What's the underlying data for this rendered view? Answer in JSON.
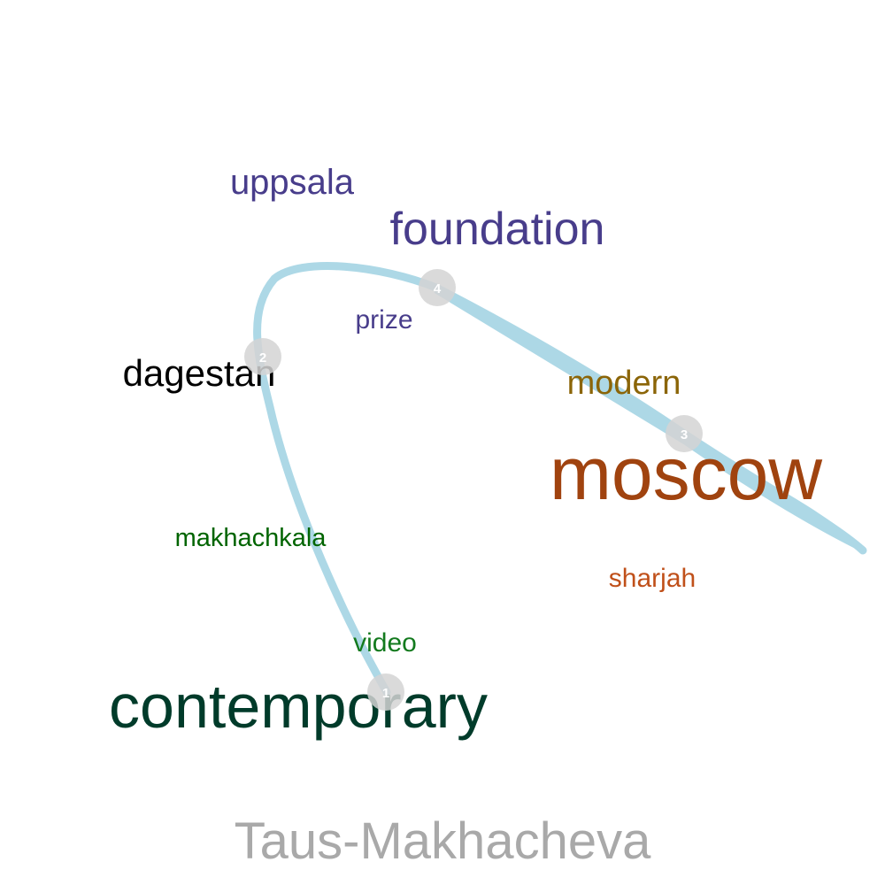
{
  "title": "Taus-Makhacheva",
  "words": [
    {
      "text": "uppsala",
      "color": "#483d8b"
    },
    {
      "text": "foundation",
      "color": "#483d8b"
    },
    {
      "text": "prize",
      "color": "#483d8b"
    },
    {
      "text": "dagestan",
      "color": "#000000"
    },
    {
      "text": "modern",
      "color": "#8b6508"
    },
    {
      "text": "moscow",
      "color": "#a0430f"
    },
    {
      "text": "makhachkala",
      "color": "#006400"
    },
    {
      "text": "sharjah",
      "color": "#c0501a"
    },
    {
      "text": "video",
      "color": "#137a1e"
    },
    {
      "text": "contemporary",
      "color": "#003b2a"
    }
  ],
  "path_nodes": [
    {
      "label": "1"
    },
    {
      "label": "2"
    },
    {
      "label": "3"
    },
    {
      "label": "4"
    }
  ],
  "colors": {
    "path": "#add8e6",
    "node": "#d3d3d3",
    "node_text": "#ffffff",
    "title": "#a9a9a9"
  }
}
